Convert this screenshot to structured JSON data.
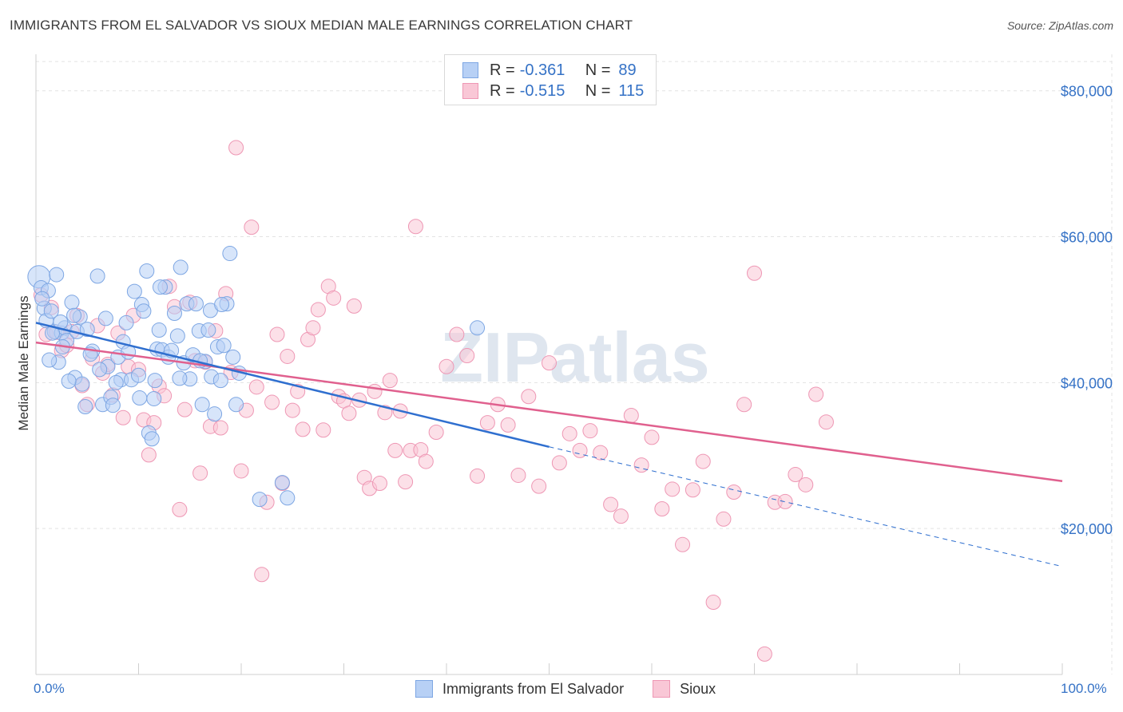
{
  "title": "IMMIGRANTS FROM EL SALVADOR VS SIOUX MEDIAN MALE EARNINGS CORRELATION CHART",
  "source": "Source: ZipAtlas.com",
  "watermark": "ZIPatlas",
  "stats": {
    "r_label": "R =",
    "n_label": "N =",
    "series1": {
      "r": "-0.361",
      "n": "89"
    },
    "series2": {
      "r": "-0.515",
      "n": "115"
    }
  },
  "chart_data": {
    "type": "scatter",
    "title": "IMMIGRANTS FROM EL SALVADOR VS SIOUX MEDIAN MALE EARNINGS CORRELATION CHART",
    "xlabel": "",
    "ylabel": "Median Male Earnings",
    "xlim": [
      0,
      100
    ],
    "ylim": [
      0,
      85000
    ],
    "x_tick_labels": [
      "0.0%",
      "100.0%"
    ],
    "y_ticks": [
      20000,
      40000,
      60000,
      80000
    ],
    "y_tick_labels": [
      "$20,000",
      "$40,000",
      "$60,000",
      "$80,000"
    ],
    "grid": true,
    "legend_position": "bottom-center",
    "colors": {
      "blue": "#7da6e3",
      "blue_fill": "#b7d0f5",
      "pink": "#ee97b4",
      "pink_fill": "#f9c7d6",
      "blue_line": "#2f6fcf",
      "pink_line": "#e0608e"
    },
    "series": [
      {
        "name": "Immigrants from El Salvador",
        "trend": {
          "x0": 0,
          "y0": 48200,
          "x1": 50,
          "y1": 31200,
          "dash_to_x": 100,
          "dash_to_y": 14800
        },
        "points": [
          [
            0.3,
            54500
          ],
          [
            0.5,
            53000
          ],
          [
            0.8,
            50200
          ],
          [
            1.0,
            48500
          ],
          [
            1.2,
            52600
          ],
          [
            1.5,
            49800
          ],
          [
            1.8,
            47000
          ],
          [
            2.0,
            54800
          ],
          [
            2.2,
            42800
          ],
          [
            2.5,
            46800
          ],
          [
            2.8,
            47500
          ],
          [
            3.0,
            45800
          ],
          [
            3.5,
            51000
          ],
          [
            3.8,
            40700
          ],
          [
            4.0,
            47000
          ],
          [
            4.3,
            49000
          ],
          [
            4.5,
            39800
          ],
          [
            5.0,
            47300
          ],
          [
            5.5,
            44300
          ],
          [
            6.0,
            54600
          ],
          [
            6.5,
            37000
          ],
          [
            6.8,
            48800
          ],
          [
            7.0,
            42200
          ],
          [
            7.3,
            38000
          ],
          [
            7.5,
            36900
          ],
          [
            8.0,
            43500
          ],
          [
            8.3,
            40400
          ],
          [
            8.5,
            45600
          ],
          [
            9.0,
            44200
          ],
          [
            9.3,
            40400
          ],
          [
            9.6,
            52500
          ],
          [
            10.0,
            41000
          ],
          [
            10.3,
            50700
          ],
          [
            10.5,
            49800
          ],
          [
            10.8,
            55300
          ],
          [
            11.0,
            33100
          ],
          [
            11.3,
            32300
          ],
          [
            11.5,
            37800
          ],
          [
            11.8,
            44600
          ],
          [
            12.0,
            47200
          ],
          [
            12.3,
            44500
          ],
          [
            12.6,
            53100
          ],
          [
            12.9,
            43500
          ],
          [
            13.2,
            44400
          ],
          [
            13.5,
            49500
          ],
          [
            13.8,
            46400
          ],
          [
            14.1,
            55800
          ],
          [
            14.4,
            42700
          ],
          [
            14.7,
            50800
          ],
          [
            15.0,
            40500
          ],
          [
            15.3,
            43800
          ],
          [
            15.6,
            50800
          ],
          [
            15.9,
            47100
          ],
          [
            16.2,
            37000
          ],
          [
            16.5,
            42900
          ],
          [
            16.8,
            47200
          ],
          [
            17.1,
            40800
          ],
          [
            17.4,
            35700
          ],
          [
            17.7,
            44900
          ],
          [
            18.0,
            40300
          ],
          [
            18.3,
            45100
          ],
          [
            18.6,
            50800
          ],
          [
            18.9,
            57700
          ],
          [
            19.2,
            43500
          ],
          [
            19.5,
            37000
          ],
          [
            19.8,
            41300
          ],
          [
            21.8,
            24000
          ],
          [
            24.0,
            26300
          ],
          [
            24.5,
            24200
          ],
          [
            43.0,
            47500
          ],
          [
            3.2,
            40200
          ],
          [
            4.8,
            36700
          ],
          [
            6.2,
            41800
          ],
          [
            1.3,
            43100
          ],
          [
            2.6,
            44900
          ],
          [
            5.3,
            43900
          ],
          [
            7.8,
            40000
          ],
          [
            8.8,
            48200
          ],
          [
            10.1,
            37900
          ],
          [
            12.1,
            53100
          ],
          [
            14.0,
            40600
          ],
          [
            16.0,
            43000
          ],
          [
            17.0,
            49900
          ],
          [
            18.1,
            50700
          ],
          [
            0.6,
            51500
          ],
          [
            1.6,
            46800
          ],
          [
            2.4,
            48300
          ],
          [
            3.7,
            49200
          ],
          [
            11.6,
            40300
          ]
        ]
      },
      {
        "name": "Sioux",
        "trend": {
          "x0": 0,
          "y0": 45500,
          "x1": 100,
          "y1": 26500
        },
        "points": [
          [
            0.5,
            52000
          ],
          [
            1.0,
            46600
          ],
          [
            1.5,
            50300
          ],
          [
            2.0,
            46900
          ],
          [
            2.5,
            44400
          ],
          [
            3.0,
            45100
          ],
          [
            3.5,
            47000
          ],
          [
            4.0,
            49200
          ],
          [
            4.5,
            39600
          ],
          [
            5.0,
            37000
          ],
          [
            5.5,
            43300
          ],
          [
            6.0,
            47800
          ],
          [
            6.5,
            41300
          ],
          [
            7.0,
            42500
          ],
          [
            7.5,
            38300
          ],
          [
            8.0,
            46800
          ],
          [
            8.5,
            35200
          ],
          [
            9.0,
            42200
          ],
          [
            9.5,
            49200
          ],
          [
            10.0,
            41800
          ],
          [
            10.5,
            34900
          ],
          [
            11.0,
            30100
          ],
          [
            11.5,
            34500
          ],
          [
            12.0,
            39500
          ],
          [
            12.5,
            38200
          ],
          [
            13.0,
            53200
          ],
          [
            13.5,
            50400
          ],
          [
            14.0,
            22600
          ],
          [
            14.5,
            36300
          ],
          [
            15.0,
            51000
          ],
          [
            15.5,
            43000
          ],
          [
            16.0,
            27600
          ],
          [
            16.5,
            42800
          ],
          [
            17.0,
            34000
          ],
          [
            17.5,
            47100
          ],
          [
            18.0,
            33800
          ],
          [
            18.5,
            52200
          ],
          [
            19.0,
            41400
          ],
          [
            19.5,
            72200
          ],
          [
            20.0,
            27900
          ],
          [
            20.5,
            36200
          ],
          [
            21.0,
            61300
          ],
          [
            21.5,
            39400
          ],
          [
            22.0,
            13700
          ],
          [
            22.5,
            23600
          ],
          [
            23.0,
            37300
          ],
          [
            23.5,
            46600
          ],
          [
            24.0,
            26200
          ],
          [
            24.5,
            43600
          ],
          [
            25.0,
            36200
          ],
          [
            25.5,
            38800
          ],
          [
            26.0,
            33600
          ],
          [
            26.5,
            45900
          ],
          [
            27.0,
            47500
          ],
          [
            27.5,
            50000
          ],
          [
            28.0,
            33500
          ],
          [
            28.5,
            53200
          ],
          [
            29.0,
            51600
          ],
          [
            29.5,
            38100
          ],
          [
            30.0,
            37500
          ],
          [
            30.5,
            35800
          ],
          [
            31.0,
            50500
          ],
          [
            31.5,
            37600
          ],
          [
            32.0,
            27000
          ],
          [
            32.5,
            25500
          ],
          [
            33.0,
            38800
          ],
          [
            33.5,
            26200
          ],
          [
            34.0,
            35900
          ],
          [
            34.5,
            40300
          ],
          [
            35.0,
            30700
          ],
          [
            35.5,
            36100
          ],
          [
            36.0,
            26400
          ],
          [
            36.5,
            30700
          ],
          [
            37.0,
            61400
          ],
          [
            37.5,
            30800
          ],
          [
            38.0,
            29200
          ],
          [
            39.0,
            33200
          ],
          [
            40.0,
            42200
          ],
          [
            41.0,
            46600
          ],
          [
            42.0,
            43700
          ],
          [
            43.0,
            27200
          ],
          [
            44.0,
            34500
          ],
          [
            45.0,
            37000
          ],
          [
            46.0,
            34200
          ],
          [
            47.0,
            27300
          ],
          [
            48.0,
            38100
          ],
          [
            49.0,
            25800
          ],
          [
            50.0,
            42700
          ],
          [
            51.0,
            29000
          ],
          [
            52.0,
            33000
          ],
          [
            53.0,
            30700
          ],
          [
            54.0,
            33400
          ],
          [
            55.0,
            30400
          ],
          [
            56.0,
            23300
          ],
          [
            57.0,
            21700
          ],
          [
            58.0,
            35500
          ],
          [
            59.0,
            28700
          ],
          [
            60.0,
            32500
          ],
          [
            61.0,
            22700
          ],
          [
            62.0,
            25400
          ],
          [
            63.0,
            17800
          ],
          [
            64.0,
            25300
          ],
          [
            65.0,
            29200
          ],
          [
            66.0,
            9900
          ],
          [
            67.0,
            21300
          ],
          [
            68.0,
            25000
          ],
          [
            69.0,
            37000
          ],
          [
            70.0,
            55000
          ],
          [
            71.0,
            2800
          ],
          [
            72.0,
            23600
          ],
          [
            73.0,
            23700
          ],
          [
            74.0,
            27400
          ],
          [
            75.0,
            26000
          ],
          [
            76.0,
            38400
          ],
          [
            77.0,
            34600
          ]
        ]
      }
    ]
  },
  "legend": {
    "series1": "Immigrants from El Salvador",
    "series2": "Sioux"
  }
}
